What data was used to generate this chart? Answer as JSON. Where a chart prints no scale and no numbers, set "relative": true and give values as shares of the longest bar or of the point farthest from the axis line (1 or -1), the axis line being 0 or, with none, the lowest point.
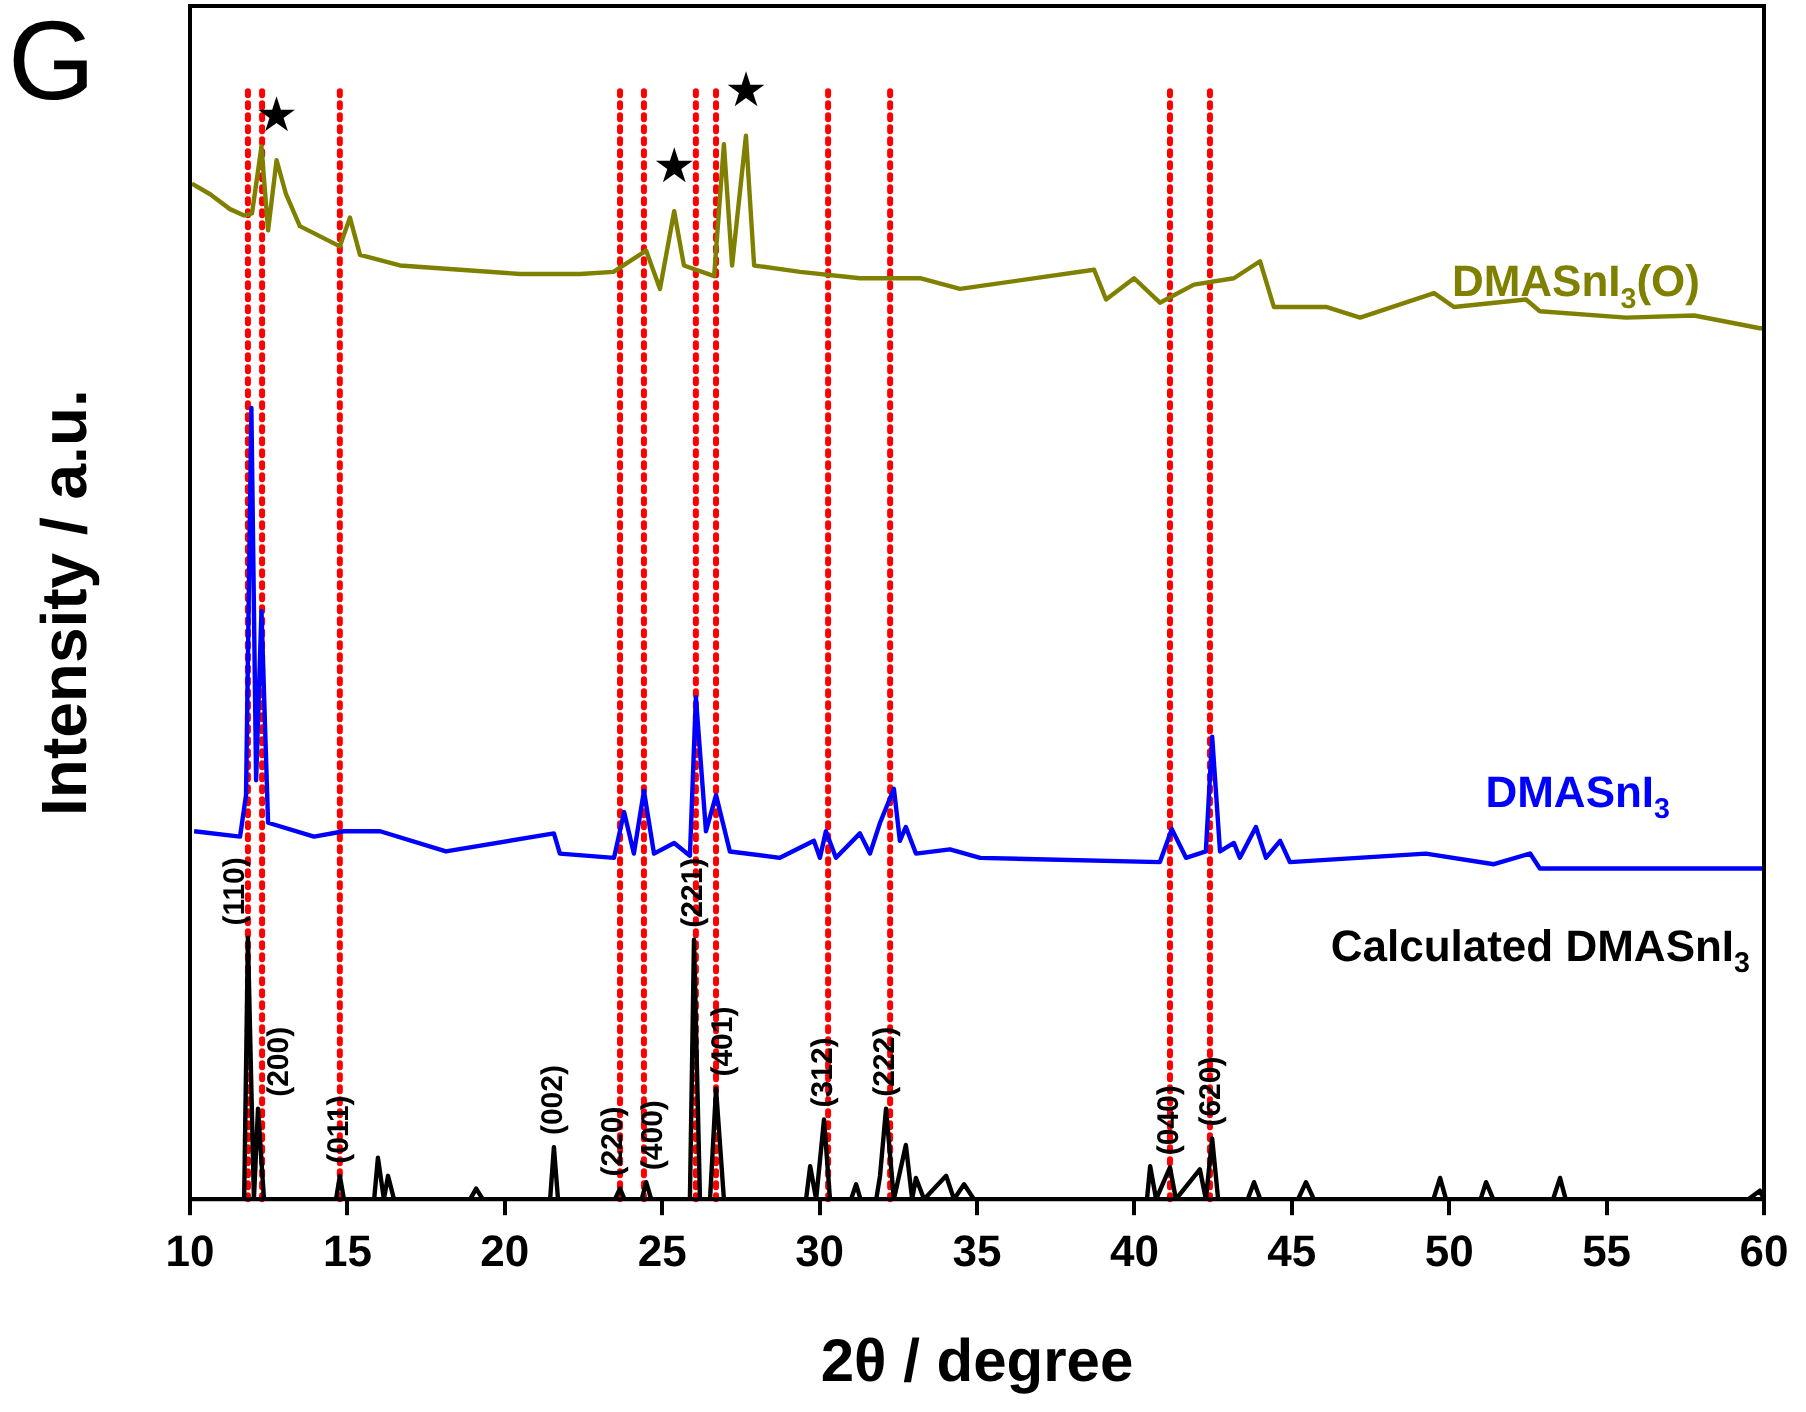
{
  "chart_data": {
    "type": "line",
    "title": "G",
    "xlabel": "2θ / degree",
    "ylabel": "Intensity / a.u.",
    "relative": true,
    "tick_labels": "x",
    "grid": false,
    "legend": false,
    "marker": "none",
    "line_style": "solid",
    "xlim": [
      10,
      60
    ],
    "xticks": [
      10,
      15,
      20,
      25,
      30,
      35,
      40,
      45,
      50,
      55,
      60
    ],
    "series": [
      {
        "name": "DMASnI$_{3}$(O)",
        "color": "#808000",
        "x": [
          10.06,
          10.64,
          11.27,
          11.72,
          11.97,
          12.27,
          12.48,
          12.75,
          13.05,
          13.49,
          14.76,
          15.08,
          15.4,
          16.67,
          18.58,
          20.48,
          22.39,
          23.45,
          24.49,
          24.93,
          25.38,
          25.69,
          26.65,
          26.96,
          27.22,
          27.66,
          27.92,
          29.38,
          31.28,
          33.19,
          34.46,
          38.72,
          39.1,
          39.99,
          40.81,
          41.89,
          43.16,
          43.99,
          44.43,
          46.09,
          47.17,
          49.52,
          50.15,
          52.44,
          52.88,
          55.62,
          57.78,
          59.87,
          60
        ],
        "values": [
          0.955,
          0.945,
          0.931,
          0.925,
          0.927,
          0.99,
          0.911,
          0.977,
          0.945,
          0.915,
          0.896,
          0.923,
          0.888,
          0.878,
          0.874,
          0.87,
          0.87,
          0.872,
          0.892,
          0.856,
          0.929,
          0.878,
          0.868,
          0.992,
          0.878,
          1,
          0.878,
          0.872,
          0.866,
          0.866,
          0.856,
          0.874,
          0.846,
          0.866,
          0.843,
          0.86,
          0.866,
          0.882,
          0.839,
          0.839,
          0.829,
          0.852,
          0.839,
          0.846,
          0.835,
          0.829,
          0.831,
          0.819,
          0.819
        ]
      },
      {
        "name": "DMASnI$_{3}$",
        "color": "#0000ff",
        "x": [
          10.13,
          11.59,
          11.78,
          11.95,
          12.1,
          12.27,
          12.48,
          13.94,
          14.89,
          16.04,
          18.13,
          21.56,
          21.75,
          23.47,
          23.79,
          24.1,
          24.42,
          24.74,
          25.38,
          25.88,
          26.07,
          26.39,
          26.71,
          27.15,
          28.74,
          29.82,
          30.01,
          30.2,
          30.52,
          31.28,
          31.6,
          31.92,
          32.36,
          32.55,
          32.74,
          33.06,
          34.14,
          35.1,
          40.81,
          41.19,
          41.64,
          42.27,
          42.47,
          42.72,
          43.16,
          43.35,
          43.86,
          44.18,
          44.63,
          44.94,
          49.26,
          51.42,
          52.57,
          52.88,
          59.87,
          60
        ],
        "values": [
          0.346,
          0.341,
          0.38,
          0.744,
          0.394,
          0.553,
          0.354,
          0.341,
          0.346,
          0.346,
          0.327,
          0.344,
          0.325,
          0.321,
          0.364,
          0.325,
          0.384,
          0.325,
          0.335,
          0.323,
          0.472,
          0.346,
          0.38,
          0.327,
          0.321,
          0.337,
          0.321,
          0.346,
          0.321,
          0.344,
          0.325,
          0.354,
          0.386,
          0.337,
          0.35,
          0.325,
          0.329,
          0.321,
          0.317,
          0.348,
          0.321,
          0.327,
          0.435,
          0.327,
          0.335,
          0.321,
          0.35,
          0.321,
          0.337,
          0.317,
          0.325,
          0.315,
          0.325,
          0.311,
          0.311,
          0.311
        ]
      },
      {
        "name": "Calculated DMASnI$_{3}$",
        "color": "#000000",
        "x": [
          10.13,
          11.72,
          11.84,
          12.03,
          12.16,
          12.35,
          14.64,
          14.76,
          14.89,
          15.85,
          15.97,
          16.16,
          16.29,
          16.48,
          18.9,
          19.09,
          19.3,
          21.44,
          21.56,
          21.69,
          23.5,
          23.66,
          23.8,
          24.35,
          24.49,
          24.65,
          25.88,
          26.01,
          26.2,
          26.52,
          26.71,
          26.96,
          29.57,
          29.7,
          29.89,
          30.14,
          30.33,
          31.0,
          31.16,
          31.3,
          31.8,
          31.92,
          32.11,
          32.36,
          32.74,
          32.94,
          33.06,
          33.32,
          34.02,
          34.27,
          34.59,
          34.9,
          40.4,
          40.5,
          40.69,
          41.13,
          41.32,
          42.08,
          42.27,
          42.47,
          42.66,
          43.6,
          43.8,
          44.0,
          45.2,
          45.45,
          45.7,
          49.5,
          49.71,
          49.9,
          51.0,
          51.17,
          51.4,
          53.3,
          53.52,
          53.7,
          59.5,
          59.87,
          60
        ],
        "values": [
          0,
          0,
          0.246,
          0,
          0.085,
          0,
          0,
          0.022,
          0,
          0,
          0.039,
          0,
          0.022,
          0,
          0,
          0.01,
          0,
          0,
          0.049,
          0,
          0,
          0.01,
          0,
          0,
          0.016,
          0,
          0,
          0.244,
          0,
          0,
          0.104,
          0,
          0,
          0.031,
          0,
          0.075,
          0,
          0,
          0.014,
          0,
          0,
          0.022,
          0.085,
          0,
          0.051,
          0,
          0.02,
          0,
          0.022,
          0,
          0.014,
          0,
          0,
          0.031,
          0,
          0.03,
          0,
          0.028,
          0,
          0.057,
          0,
          0,
          0.016,
          0,
          0,
          0.016,
          0,
          0,
          0.02,
          0,
          0,
          0.016,
          0,
          0,
          0.02,
          0,
          0,
          0.008,
          0
        ]
      }
    ],
    "ref_lines": [
      {
        "axis": "x",
        "value": 11.84,
        "color": "#ff0000",
        "line_style": "dotted"
      },
      {
        "axis": "x",
        "value": 12.29,
        "color": "#ff0000",
        "line_style": "dotted"
      },
      {
        "axis": "x",
        "value": 14.76,
        "color": "#ff0000",
        "line_style": "dotted"
      },
      {
        "axis": "x",
        "value": 23.66,
        "color": "#ff0000",
        "line_style": "dotted"
      },
      {
        "axis": "x",
        "value": 24.42,
        "color": "#ff0000",
        "line_style": "dotted"
      },
      {
        "axis": "x",
        "value": 26.07,
        "color": "#ff0000",
        "line_style": "dotted"
      },
      {
        "axis": "x",
        "value": 26.71,
        "color": "#ff0000",
        "line_style": "dotted"
      },
      {
        "axis": "x",
        "value": 30.27,
        "color": "#ff0000",
        "line_style": "dotted"
      },
      {
        "axis": "x",
        "value": 32.24,
        "color": "#ff0000",
        "line_style": "dotted"
      },
      {
        "axis": "x",
        "value": 41.13,
        "color": "#ff0000",
        "line_style": "dotted"
      },
      {
        "axis": "x",
        "value": 42.4,
        "color": "#ff0000",
        "line_style": "dotted"
      }
    ],
    "annotations": [
      {
        "text": "(110)",
        "x": 11.84,
        "y": 0.246
      },
      {
        "text": "(200)",
        "x": 12.16,
        "y": 0.085
      },
      {
        "text": "(011)",
        "x": 14.76,
        "y": 0.022
      },
      {
        "text": "(002)",
        "x": 21.56,
        "y": 0.049
      },
      {
        "text": "(220)",
        "x": 23.66,
        "y": 0.01
      },
      {
        "text": "(400)",
        "x": 24.49,
        "y": 0.016
      },
      {
        "text": "(221)",
        "x": 26.01,
        "y": 0.244
      },
      {
        "text": "(401)",
        "x": 26.71,
        "y": 0.104
      },
      {
        "text": "(312)",
        "x": 30.14,
        "y": 0.075
      },
      {
        "text": "(222)",
        "x": 32.11,
        "y": 0.085
      },
      {
        "text": "(040)",
        "x": 41.13,
        "y": 0.03
      },
      {
        "text": "(620)",
        "x": 42.47,
        "y": 0.057
      },
      {
        "text": "★",
        "x": 12.75,
        "y": 0.977
      },
      {
        "text": "★",
        "x": 25.38,
        "y": 0.929
      },
      {
        "text": "★",
        "x": 27.66,
        "y": 1
      }
    ]
  }
}
